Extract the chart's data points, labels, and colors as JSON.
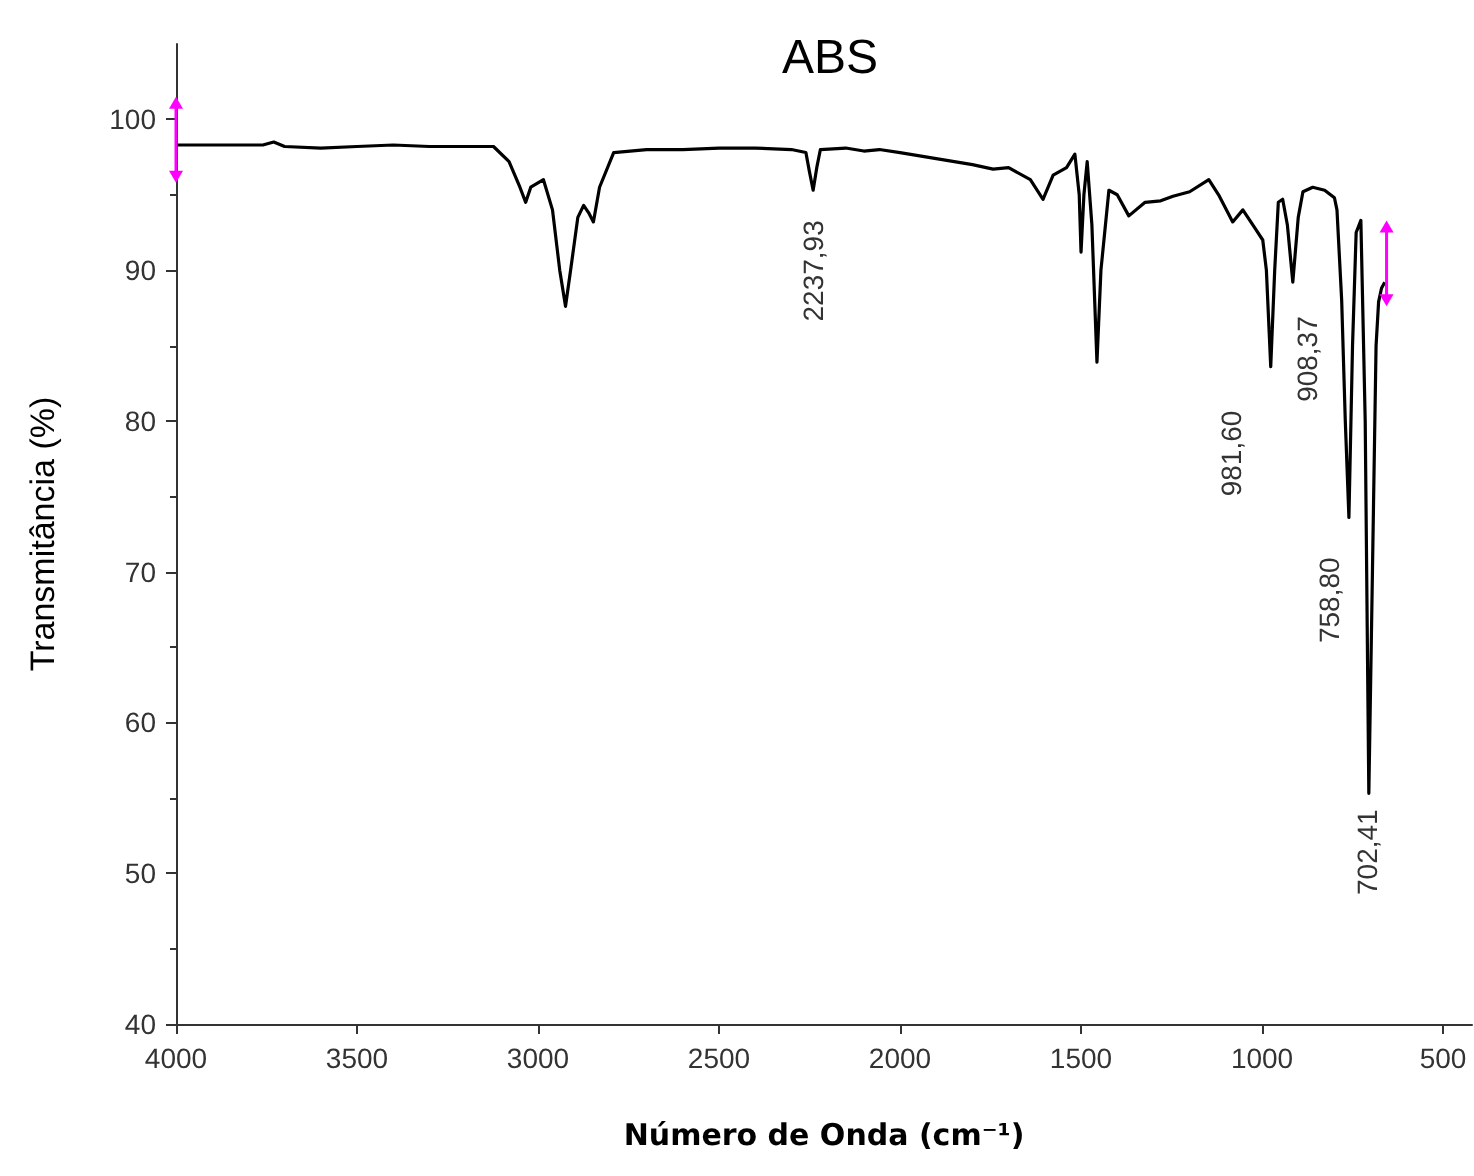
{
  "chart_data": {
    "type": "line",
    "title": "ABS",
    "xlabel": "Número de Onda (cm⁻¹)",
    "ylabel": "Transmitância (%)",
    "xlim": [
      4000,
      420
    ],
    "xticks": [
      4000,
      3500,
      3000,
      2500,
      2000,
      1500,
      1000,
      500
    ],
    "ylim": [
      40,
      105
    ],
    "yticks": [
      40,
      50,
      60,
      70,
      80,
      90,
      100
    ],
    "grid": false,
    "marker": "none",
    "line_style": "solid",
    "annotations": [
      {
        "text": "2237,93",
        "x": 2240,
        "y": 95.3
      },
      {
        "text": "981,60",
        "x": 976,
        "y": 83.6
      },
      {
        "text": "908,37",
        "x": 915,
        "y": 89.2
      },
      {
        "text": "758,80",
        "x": 760,
        "y": 73.6
      },
      {
        "text": "702,41",
        "x": 705,
        "y": 55.3
      }
    ],
    "series": [
      {
        "color": "#000000",
        "x": [
          4000,
          3900,
          3760,
          3730,
          3700,
          3600,
          3500,
          3400,
          3300,
          3200,
          3123,
          3080,
          3050,
          3034,
          3020,
          2985,
          2960,
          2940,
          2924,
          2910,
          2890,
          2874,
          2860,
          2847,
          2830,
          2791,
          2700,
          2600,
          2500,
          2400,
          2300,
          2260,
          2250,
          2240,
          2230,
          2220,
          2150,
          2100,
          2057,
          2000,
          1900,
          1800,
          1743,
          1700,
          1640,
          1605,
          1577,
          1540,
          1517,
          1505,
          1500,
          1492,
          1483,
          1470,
          1456,
          1445,
          1423,
          1400,
          1368,
          1323,
          1280,
          1246,
          1200,
          1147,
          1120,
          1081,
          1053,
          1020,
          998,
          988,
          976,
          965,
          955,
          943,
          930,
          915,
          900,
          887,
          860,
          827,
          800,
          793,
          780,
          770,
          760,
          750,
          740,
          727,
          715,
          705,
          695,
          685,
          678,
          670,
          661
        ],
        "values": [
          98.3,
          98.3,
          98.3,
          98.5,
          98.2,
          98.1,
          98.2,
          98.3,
          98.2,
          98.2,
          98.2,
          97.2,
          95.5,
          94.5,
          95.5,
          96,
          94,
          90,
          87.6,
          90,
          93.5,
          94.3,
          93.8,
          93.2,
          95.5,
          97.8,
          98,
          98,
          98.1,
          98.1,
          98,
          97.8,
          96.5,
          95.3,
          96.8,
          98,
          98.1,
          97.9,
          98,
          97.8,
          97.4,
          97,
          96.7,
          96.8,
          96,
          94.7,
          96.3,
          96.8,
          97.7,
          95,
          91.2,
          95,
          97.2,
          93,
          83.9,
          90,
          95.3,
          95,
          93.6,
          94.5,
          94.6,
          94.9,
          95.2,
          96,
          95,
          93.2,
          94,
          92.8,
          92,
          90,
          83.6,
          90,
          94.5,
          94.7,
          93,
          89.2,
          93.5,
          95.2,
          95.5,
          95.3,
          94.8,
          94,
          88,
          80,
          73.6,
          85,
          92.5,
          93.3,
          80,
          55.3,
          70,
          85,
          87.9,
          88.8,
          89.2
        ]
      }
    ]
  }
}
